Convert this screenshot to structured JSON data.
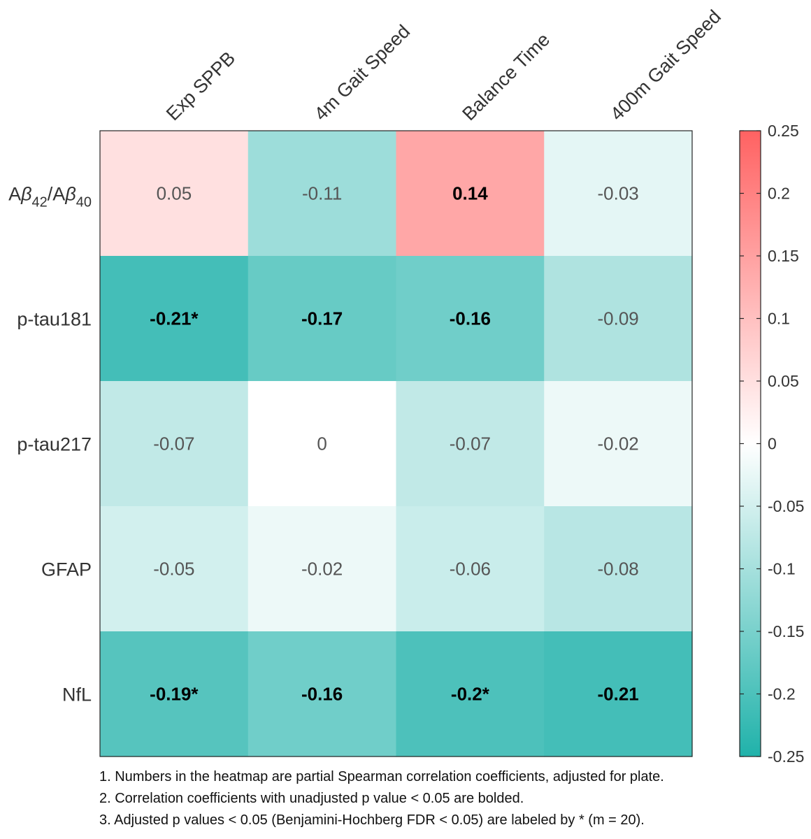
{
  "chart_data": {
    "type": "heatmap",
    "columns": [
      "Exp SPPB",
      "4m Gait Speed",
      "Balance Time",
      "400m Gait Speed"
    ],
    "rows": [
      {
        "label_parts": [
          "A",
          "β",
          "42",
          "/A",
          "β",
          "40"
        ],
        "plain": "Aβ42/Aβ40"
      },
      {
        "label": "p-tau181"
      },
      {
        "label": "p-tau217"
      },
      {
        "label": "GFAP"
      },
      {
        "label": "NfL"
      }
    ],
    "values": [
      [
        0.05,
        -0.11,
        0.14,
        -0.03
      ],
      [
        -0.21,
        -0.17,
        -0.16,
        -0.09
      ],
      [
        -0.07,
        0,
        -0.07,
        -0.02
      ],
      [
        -0.05,
        -0.02,
        -0.06,
        -0.08
      ],
      [
        -0.19,
        -0.16,
        -0.2,
        -0.21
      ]
    ],
    "cell_labels": [
      [
        "0.05",
        "-0.11",
        "0.14",
        "-0.03"
      ],
      [
        "-0.21*",
        "-0.17",
        "-0.16",
        "-0.09"
      ],
      [
        "-0.07",
        "0",
        "-0.07",
        "-0.02"
      ],
      [
        "-0.05",
        "-0.02",
        "-0.06",
        "-0.08"
      ],
      [
        "-0.19*",
        "-0.16",
        "-0.2*",
        "-0.21"
      ]
    ],
    "bold": [
      [
        false,
        false,
        true,
        false
      ],
      [
        true,
        true,
        true,
        false
      ],
      [
        false,
        false,
        false,
        false
      ],
      [
        false,
        false,
        false,
        false
      ],
      [
        true,
        true,
        true,
        true
      ]
    ],
    "colorbar": {
      "range": [
        -0.25,
        0.25
      ],
      "ticks": [
        "0.25",
        "0.2",
        "0.15",
        "0.1",
        "0.05",
        "0",
        "-0.05",
        "-0.1",
        "-0.15",
        "-0.2",
        "-0.25"
      ],
      "tick_values": [
        0.25,
        0.2,
        0.15,
        0.1,
        0.05,
        0,
        -0.05,
        -0.1,
        -0.15,
        -0.2,
        -0.25
      ],
      "colors": {
        "negative": "#20b2aa",
        "zero": "#ffffff",
        "positive": "#ff6262"
      }
    }
  },
  "footnotes": [
    "1. Numbers in the heatmap are partial Spearman correlation coefficients, adjusted for plate.",
    "2. Correlation coefficients with unadjusted p value < 0.05 are bolded.",
    "3. Adjusted p values < 0.05 (Benjamini-Hochberg FDR < 0.05) are labeled by * (m = 20)."
  ]
}
